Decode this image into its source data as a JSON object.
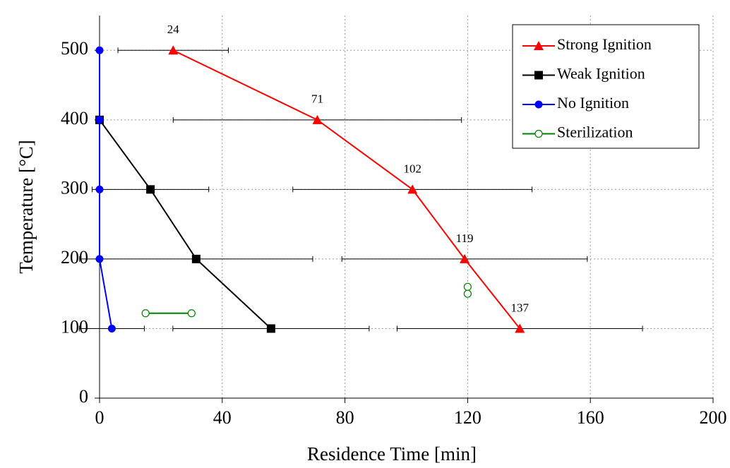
{
  "chart_data": {
    "type": "line",
    "xlabel": "Residence Time [min]",
    "ylabel": "Temperature [°C]",
    "xlim": [
      0,
      200
    ],
    "ylim": [
      0,
      550
    ],
    "xticks": [
      0,
      40,
      80,
      120,
      160,
      200
    ],
    "yticks": [
      0,
      100,
      200,
      300,
      400,
      500
    ],
    "grid": true,
    "legend": "upper right",
    "series": [
      {
        "name": "Strong Ignition",
        "color": "#ff0000",
        "marker": "triangle",
        "x": [
          24,
          71,
          102,
          119,
          137
        ],
        "values": [
          500,
          400,
          300,
          200,
          100
        ],
        "xerr": [
          18,
          47,
          39,
          40,
          40
        ]
      },
      {
        "name": "Weak Ignition",
        "color": "#000000",
        "marker": "square",
        "x": [
          0,
          16.6,
          31.5,
          55.9
        ],
        "values": [
          400,
          300,
          200,
          100
        ],
        "xerr": [
          null,
          19,
          38,
          32
        ]
      },
      {
        "name": "No Ignition",
        "color": "#0000ff",
        "marker": "circle",
        "x": [
          0,
          0,
          0,
          0,
          4
        ],
        "values": [
          500,
          400,
          300,
          200,
          100
        ],
        "xerr": [
          null,
          null,
          null,
          null,
          10.6
        ]
      },
      {
        "name": "Sterilization",
        "color": "#008000",
        "marker": "open-circle",
        "x": [
          15,
          30,
          null,
          120,
          120
        ],
        "values": [
          122,
          122,
          null,
          160,
          150
        ]
      }
    ]
  }
}
